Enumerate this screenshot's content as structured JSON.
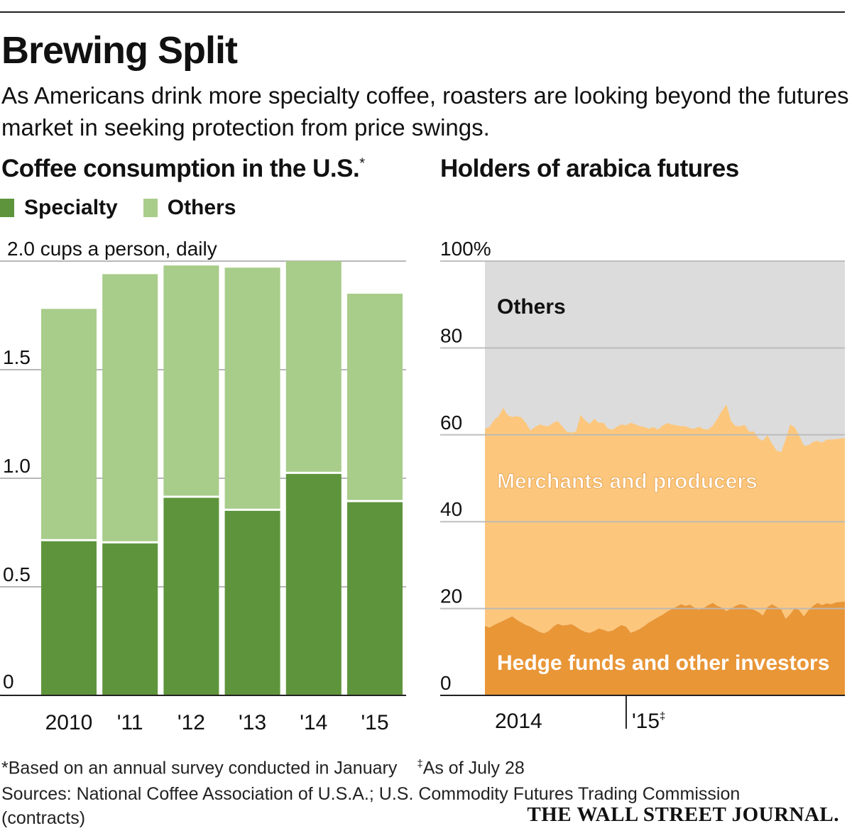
{
  "title": "Brewing Split",
  "subtitle": "As Americans drink more specialty coffee, roasters are looking beyond the futures market in seeking protection from price swings.",
  "colors": {
    "specialty": "#5e953c",
    "others": "#a8cc8a",
    "area_others": "#dcdcdc",
    "merchants": "#fcc77d",
    "hedge": "#e99637",
    "grid": "#b8b8b8",
    "axis": "#222222"
  },
  "chart_data": [
    {
      "type": "bar",
      "title": "Coffee consumption in the U.S.",
      "title_mark": "*",
      "unit_label": "2.0 cups a person, daily",
      "ylim": [
        0,
        2.0
      ],
      "yticks": [
        0,
        0.5,
        1.0,
        1.5
      ],
      "ytick_labels": [
        "0",
        "0.5",
        "1.0",
        "1.5"
      ],
      "categories": [
        "2010",
        "'11",
        "'12",
        "'13",
        "'14",
        "'15"
      ],
      "stacked": true,
      "legend": [
        "Specialty",
        "Others"
      ],
      "series": [
        {
          "name": "Specialty",
          "values": [
            0.71,
            0.7,
            0.91,
            0.85,
            1.02,
            0.89
          ]
        },
        {
          "name": "Others",
          "values": [
            1.07,
            1.24,
            1.07,
            1.12,
            0.98,
            0.96
          ]
        }
      ]
    },
    {
      "type": "area",
      "title": "Holders of arabica futures",
      "ylim": [
        0,
        100
      ],
      "yticks": [
        0,
        20,
        40,
        60,
        80,
        100
      ],
      "ytick_labels": [
        "0",
        "20",
        "40",
        "60",
        "80",
        "100%"
      ],
      "x_labels": [
        "2014",
        "'15"
      ],
      "x_label_mark": "‡",
      "series_labels": [
        "Others",
        "Merchants and producers",
        "Hedge funds and other investors"
      ],
      "x": [
        0,
        1,
        2,
        3,
        4,
        5,
        6,
        7,
        8,
        9,
        10,
        11,
        12,
        13,
        14,
        15,
        16,
        17,
        18,
        19,
        20,
        21,
        22,
        23,
        24,
        25,
        26,
        27,
        28,
        29,
        30,
        31,
        32,
        33,
        34,
        35,
        36,
        37,
        38,
        39,
        40,
        41,
        42,
        43,
        44,
        45,
        46,
        47,
        48,
        49,
        50,
        51,
        52,
        53,
        54,
        55,
        56,
        57,
        58,
        59,
        60,
        61,
        62,
        63,
        64,
        65,
        66,
        67,
        68,
        69,
        70,
        71,
        72,
        73,
        74,
        75,
        76,
        77,
        78,
        79
      ],
      "x_major_tick": 31,
      "series": [
        {
          "name": "Hedge funds and other investors",
          "values": [
            16,
            15.6,
            16.2,
            16.7,
            17.2,
            17.7,
            18.2,
            17.4,
            16.8,
            16.2,
            15.8,
            15.2,
            14.6,
            14.3,
            14.8,
            15.8,
            16.5,
            16.1,
            16.2,
            16.4,
            15.8,
            15.1,
            14.6,
            14.4,
            14.8,
            15.4,
            15.1,
            14.7,
            14.9,
            15.6,
            16.2,
            15.8,
            14.4,
            14.8,
            15.3,
            16.0,
            16.8,
            17.4,
            18.0,
            18.6,
            19.3,
            19.9,
            20.4,
            21.0,
            20.6,
            20.9,
            20.2,
            19.7,
            20.1,
            20.8,
            21.3,
            20.6,
            20.2,
            19.4,
            20.0,
            20.6,
            21.0,
            20.8,
            20.1,
            19.7,
            19.2,
            18.4,
            20.3,
            21.0,
            20.4,
            19.8,
            17.6,
            18.7,
            20.1,
            19.6,
            18.2,
            19.6,
            20.6,
            21.3,
            20.8,
            21.2,
            21.0,
            21.4,
            21.5,
            21.6
          ]
        },
        {
          "name": "Merchants and producers",
          "values": [
            45.4,
            46.2,
            47.2,
            47.6,
            49.0,
            46.8,
            45.9,
            46.9,
            47.2,
            46.5,
            45.2,
            46.6,
            47.8,
            47.8,
            47.2,
            47.0,
            46.7,
            45.8,
            44.5,
            44.1,
            45.0,
            49.5,
            48.7,
            48.1,
            48.9,
            47.4,
            47.7,
            46.7,
            46.3,
            46.3,
            46.2,
            46.4,
            48.4,
            47.6,
            46.7,
            45.8,
            44.6,
            44.4,
            43.2,
            43.5,
            43.4,
            42.5,
            41.8,
            41.0,
            41.4,
            40.6,
            41.2,
            42.2,
            41.2,
            40.4,
            40.8,
            43.1,
            45.3,
            47.6,
            43.2,
            41.4,
            41.0,
            41.5,
            40.6,
            41.1,
            40.0,
            40.2,
            39.6,
            37.0,
            36.0,
            36.2,
            41.4,
            43.7,
            41.6,
            40.2,
            39.3,
            38.0,
            37.8,
            37.3,
            37.4,
            37.7,
            37.9,
            37.6,
            37.6,
            37.7
          ]
        },
        {
          "name": "Others",
          "values": [
            38.6,
            38.2,
            36.6,
            35.7,
            33.8,
            35.5,
            35.9,
            35.7,
            36.0,
            37.3,
            39.0,
            38.2,
            37.6,
            37.9,
            38.0,
            37.2,
            36.8,
            38.1,
            39.3,
            39.5,
            39.2,
            35.4,
            36.7,
            37.5,
            36.3,
            37.2,
            37.2,
            38.6,
            38.8,
            38.1,
            37.6,
            37.8,
            37.2,
            37.6,
            38.0,
            38.2,
            38.6,
            38.2,
            38.8,
            37.9,
            37.3,
            37.6,
            37.8,
            38.0,
            38.0,
            38.5,
            38.6,
            38.1,
            38.7,
            38.8,
            37.9,
            36.3,
            34.5,
            33.0,
            36.8,
            38.0,
            38.0,
            37.7,
            39.3,
            39.2,
            40.8,
            41.4,
            40.1,
            42.0,
            43.6,
            44.0,
            41.0,
            37.6,
            38.3,
            40.2,
            42.5,
            42.4,
            41.6,
            41.4,
            41.8,
            41.1,
            41.1,
            41.0,
            40.9,
            40.7
          ]
        }
      ]
    }
  ],
  "footnotes": {
    "asterisk_mark": "*",
    "asterisk_note": "Based on an annual survey conducted in January",
    "dagger_mark": "‡",
    "dagger_note": "As of July 28",
    "sources": "Sources: National Coffee Association of U.S.A.; U.S. Commodity Futures Trading Commission (contracts)"
  },
  "brand": "THE WALL STREET JOURNAL."
}
